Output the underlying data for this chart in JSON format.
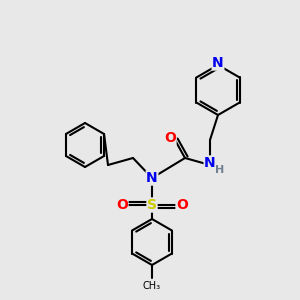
{
  "bg_color": "#e8e8e8",
  "bond_color": "#000000",
  "bond_width": 1.5,
  "atom_colors": {
    "N": "#0000ee",
    "O": "#ff0000",
    "S": "#cccc00",
    "H": "#708090",
    "C": "#000000"
  },
  "font_size_atom": 10,
  "font_size_h": 8,
  "figsize": [
    3.0,
    3.0
  ],
  "dpi": 100
}
